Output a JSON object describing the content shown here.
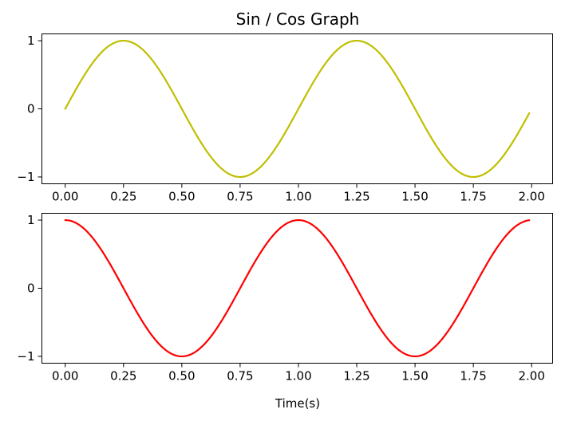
{
  "chart_data": [
    {
      "type": "line",
      "title": "Sin / Cos Graph",
      "xlabel": "",
      "ylabel": "",
      "xlim": [
        -0.1,
        2.09
      ],
      "ylim": [
        -1.1,
        1.1
      ],
      "xticks": [
        0.0,
        0.25,
        0.5,
        0.75,
        1.0,
        1.25,
        1.5,
        1.75,
        2.0
      ],
      "xtick_labels": [
        "0.00",
        "0.25",
        "0.50",
        "0.75",
        "1.00",
        "1.25",
        "1.50",
        "1.75",
        "2.00"
      ],
      "yticks": [
        -1,
        0,
        1
      ],
      "ytick_labels": [
        "−1",
        "0",
        "1"
      ],
      "grid": false,
      "series": [
        {
          "function": "sin",
          "color": "#bfbf00",
          "x": [
            0.0,
            0.05,
            0.1,
            0.15,
            0.2,
            0.25,
            0.3,
            0.35,
            0.4,
            0.45,
            0.5,
            0.55,
            0.6,
            0.65,
            0.7,
            0.75,
            0.8,
            0.85,
            0.9,
            0.95,
            1.0,
            1.05,
            1.1,
            1.15,
            1.2,
            1.25,
            1.3,
            1.35,
            1.4,
            1.45,
            1.5,
            1.55,
            1.6,
            1.65,
            1.7,
            1.75,
            1.8,
            1.85,
            1.9,
            1.95,
            1.99
          ],
          "y": [
            0.0,
            0.309,
            0.588,
            0.809,
            0.951,
            1.0,
            0.951,
            0.809,
            0.588,
            0.309,
            0.0,
            -0.309,
            -0.588,
            -0.809,
            -0.951,
            -1.0,
            -0.951,
            -0.809,
            -0.588,
            -0.309,
            0.0,
            0.309,
            0.588,
            0.809,
            0.951,
            1.0,
            0.951,
            0.809,
            0.588,
            0.309,
            0.0,
            -0.309,
            -0.588,
            -0.809,
            -0.951,
            -1.0,
            -0.951,
            -0.809,
            -0.588,
            -0.309,
            -0.063
          ]
        }
      ]
    },
    {
      "type": "line",
      "title": "",
      "xlabel": "Time(s)",
      "ylabel": "",
      "xlim": [
        -0.1,
        2.09
      ],
      "ylim": [
        -1.1,
        1.1
      ],
      "xticks": [
        0.0,
        0.25,
        0.5,
        0.75,
        1.0,
        1.25,
        1.5,
        1.75,
        2.0
      ],
      "xtick_labels": [
        "0.00",
        "0.25",
        "0.50",
        "0.75",
        "1.00",
        "1.25",
        "1.50",
        "1.75",
        "2.00"
      ],
      "yticks": [
        -1,
        0,
        1
      ],
      "ytick_labels": [
        "−1",
        "0",
        "1"
      ],
      "grid": false,
      "series": [
        {
          "function": "cos",
          "color": "#ff0000",
          "x": [
            0.0,
            0.05,
            0.1,
            0.15,
            0.2,
            0.25,
            0.3,
            0.35,
            0.4,
            0.45,
            0.5,
            0.55,
            0.6,
            0.65,
            0.7,
            0.75,
            0.8,
            0.85,
            0.9,
            0.95,
            1.0,
            1.05,
            1.1,
            1.15,
            1.2,
            1.25,
            1.3,
            1.35,
            1.4,
            1.45,
            1.5,
            1.55,
            1.6,
            1.65,
            1.7,
            1.75,
            1.8,
            1.85,
            1.9,
            1.95,
            1.99
          ],
          "y": [
            1.0,
            0.951,
            0.809,
            0.588,
            0.309,
            0.0,
            -0.309,
            -0.588,
            -0.809,
            -0.951,
            -1.0,
            -0.951,
            -0.809,
            -0.588,
            -0.309,
            0.0,
            0.309,
            0.588,
            0.809,
            0.951,
            1.0,
            0.951,
            0.809,
            0.588,
            0.309,
            0.0,
            -0.309,
            -0.588,
            -0.809,
            -0.951,
            -1.0,
            -0.951,
            -0.809,
            -0.588,
            -0.309,
            0.0,
            0.309,
            0.588,
            0.809,
            0.951,
            0.998
          ]
        }
      ]
    }
  ]
}
